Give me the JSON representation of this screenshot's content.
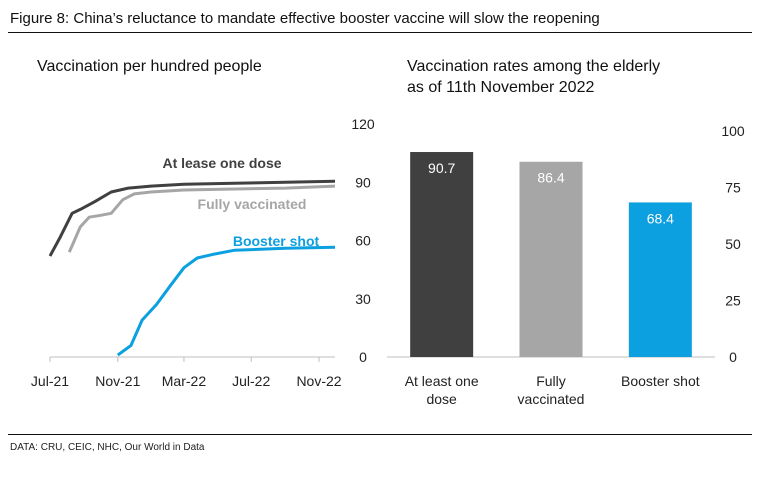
{
  "figure": {
    "title": "Figure 8: China’s reluctance to mandate effective booster vaccine will slow the reopening",
    "source": "DATA: CRU, CEIC, NHC, Our World in Data"
  },
  "colors": {
    "dark": "#404040",
    "grey": "#a6a6a6",
    "blue": "#0ca0e0",
    "axis": "#bfbfbf"
  },
  "chart_data": [
    {
      "type": "line",
      "title": "Vaccination per hundred people",
      "ylim": [
        0,
        120
      ],
      "yticks": [
        0,
        30,
        60,
        90,
        120
      ],
      "xlim": [
        "2021-07-01",
        "2022-11-30"
      ],
      "xticks": [
        {
          "date": "2021-07-01",
          "label": "Jul-21"
        },
        {
          "date": "2021-11-01",
          "label": "Nov-21"
        },
        {
          "date": "2022-03-01",
          "label": "Mar-22"
        },
        {
          "date": "2022-07-01",
          "label": "Jul-22"
        },
        {
          "date": "2022-11-01",
          "label": "Nov-22"
        }
      ],
      "series": [
        {
          "name": "At lease one dose",
          "color_key": "dark",
          "points": [
            [
              "2021-07-01",
              52
            ],
            [
              "2021-07-20",
              62
            ],
            [
              "2021-08-10",
              74
            ],
            [
              "2021-08-25",
              76
            ],
            [
              "2021-09-20",
              80
            ],
            [
              "2021-10-20",
              85
            ],
            [
              "2021-11-20",
              87
            ],
            [
              "2021-12-31",
              88
            ],
            [
              "2022-03-01",
              89
            ],
            [
              "2022-06-01",
              89.5
            ],
            [
              "2022-09-01",
              90
            ],
            [
              "2022-11-30",
              90.5
            ]
          ]
        },
        {
          "name": "Fully vaccinated",
          "color_key": "grey",
          "points": [
            [
              "2021-08-05",
              54
            ],
            [
              "2021-08-25",
              67
            ],
            [
              "2021-09-10",
              72
            ],
            [
              "2021-10-01",
              73
            ],
            [
              "2021-10-20",
              74
            ],
            [
              "2021-11-10",
              81
            ],
            [
              "2021-12-01",
              84
            ],
            [
              "2021-12-31",
              85
            ],
            [
              "2022-03-01",
              86
            ],
            [
              "2022-06-01",
              86.5
            ],
            [
              "2022-09-01",
              87
            ],
            [
              "2022-11-30",
              88
            ]
          ]
        },
        {
          "name": "Booster shot",
          "color_key": "blue",
          "points": [
            [
              "2021-11-01",
              1
            ],
            [
              "2021-11-25",
              6
            ],
            [
              "2021-12-15",
              19
            ],
            [
              "2022-01-10",
              27
            ],
            [
              "2022-02-05",
              37
            ],
            [
              "2022-03-01",
              46
            ],
            [
              "2022-03-25",
              51
            ],
            [
              "2022-04-25",
              53
            ],
            [
              "2022-06-01",
              55
            ],
            [
              "2022-09-01",
              56
            ],
            [
              "2022-11-30",
              56.5
            ]
          ]
        }
      ]
    },
    {
      "type": "bar",
      "title": [
        "Vaccination rates among the elderly",
        "as of 11th November 2022"
      ],
      "categories": [
        [
          "At least one",
          "dose"
        ],
        [
          "Fully",
          "vaccinated"
        ],
        [
          "Booster shot"
        ]
      ],
      "values": [
        90.7,
        86.4,
        68.4
      ],
      "labels": [
        "90.7",
        "86.4",
        "68.4"
      ],
      "color_keys": [
        "dark",
        "grey",
        "blue"
      ],
      "ylim": [
        0,
        100
      ],
      "yticks": [
        0,
        25,
        50,
        75,
        100
      ]
    }
  ]
}
